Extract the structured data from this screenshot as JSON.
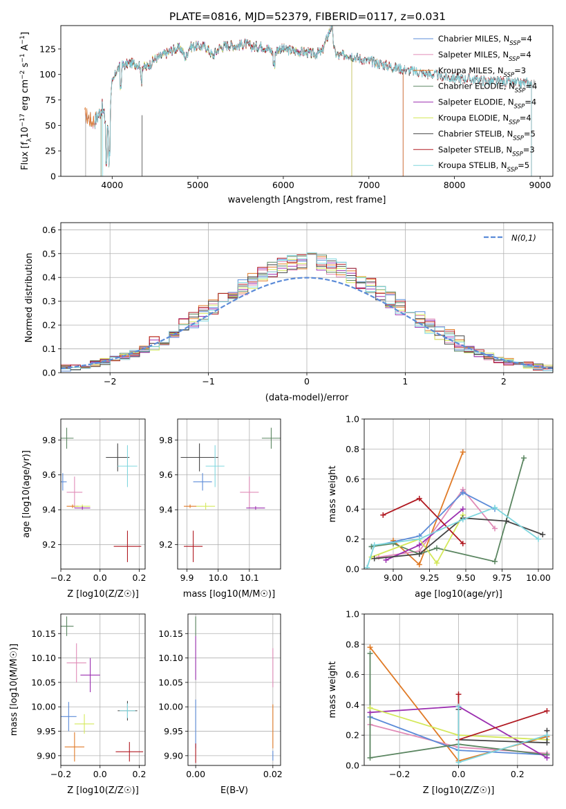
{
  "title": "PLATE=0816, MJD=52379, FIBERID=0117, z=0.031",
  "colors": {
    "blue": "#5b8bd8",
    "pink": "#e08bb7",
    "orange": "#e07a26",
    "green": "#5a8560",
    "purple": "#9b2fb0",
    "yellow": "#d4e85a",
    "gray": "#444444",
    "red": "#b01820",
    "cyan": "#7fd6de"
  },
  "spectrum_panel": {
    "xlabel": "wavelength [Angstrom, rest frame]",
    "ylabel": "Flux [f_λ10^-17 erg cm^-2 s^-1 A^-1]",
    "legend": [
      "Chabrier MILES, N_SSP=4",
      "Salpeter MILES, N_SSP=4",
      "Kroupa MILES, N_SSP=3",
      "Chabrier ELODIE, N_SSP=4",
      "Salpeter ELODIE, N_SSP=4",
      "Kroupa ELODIE, N_SSP=4",
      "Chabrier STELIB, N_SSP=5",
      "Salpeter STELIB, N_SSP=3",
      "Kroupa STELIB, N_SSP=5"
    ]
  },
  "residual_panel": {
    "xlabel": "(data-model)/error",
    "ylabel": "Normed distribution",
    "legend": "N(0,1)"
  },
  "age_z_panel": {
    "xlabel": "Z [log10(Z/Z☉)]",
    "ylabel": "age  [log10(age/yr)]"
  },
  "age_mass_panel": {
    "xlabel": "mass [log10(M/M☉)]"
  },
  "weight_age_panel": {
    "xlabel": "age  [log10(age/yr)]",
    "ylabel": "mass weight"
  },
  "mass_z_panel": {
    "xlabel": "Z [log10(Z/Z☉)]",
    "ylabel": "mass [log10(M/M☉)]"
  },
  "mass_ebv_panel": {
    "xlabel": "E(B-V)"
  },
  "weight_z_panel": {
    "xlabel": "Z [log10(Z/Z☉)]",
    "ylabel": "mass weight"
  },
  "chart_data": [
    {
      "type": "line",
      "title": "PLATE=0816, MJD=52379, FIBERID=0117, z=0.031",
      "xlabel": "wavelength [Angstrom, rest frame]",
      "ylabel": "Flux [f_λ10^-17 erg cm^-2 s^-1 A^-1]",
      "xlim": [
        3400,
        9150
      ],
      "ylim": [
        0,
        148
      ],
      "xticks": [
        4000,
        5000,
        6000,
        7000,
        8000,
        9000
      ],
      "yticks": [
        0,
        25,
        50,
        75,
        100,
        125
      ],
      "legend_position": "top-right",
      "observed": {
        "x": [
          3680,
          3720,
          3760,
          3800,
          3850,
          3880,
          3920,
          3960,
          4000,
          4050,
          4100,
          4200,
          4300,
          4400,
          4500,
          4600,
          4700,
          4800,
          4861,
          4900,
          5000,
          5100,
          5175,
          5250,
          5350,
          5450,
          5550,
          5650,
          5750,
          5850,
          5893,
          5950,
          6050,
          6150,
          6250,
          6350,
          6450,
          6563,
          6600,
          6650,
          6750,
          6850,
          6950,
          7050,
          7150,
          7250,
          7350,
          7450,
          7550,
          7650,
          7750,
          7850,
          7950,
          8050,
          8150,
          8250,
          8350,
          8450,
          8550,
          8650,
          8750,
          8850,
          8950
        ],
        "y": [
          60,
          58,
          54,
          55,
          62,
          68,
          55,
          48,
          90,
          104,
          108,
          111,
          110,
          107,
          115,
          119,
          124,
          126,
          116,
          127,
          128,
          127,
          118,
          126,
          129,
          128,
          130,
          127,
          128,
          124,
          120,
          126,
          124,
          123,
          122,
          120,
          122,
          148,
          122,
          118,
          120,
          117,
          114,
          112,
          110,
          108,
          106,
          104,
          103,
          101,
          100,
          98,
          97,
          96,
          96,
          95,
          94,
          93,
          93,
          92,
          91,
          92,
          90
        ]
      },
      "series": [
        {
          "name": "Chabrier MILES, N_SSP=4",
          "color": "blue"
        },
        {
          "name": "Salpeter MILES, N_SSP=4",
          "color": "pink"
        },
        {
          "name": "Kroupa MILES, N_SSP=3",
          "color": "orange"
        },
        {
          "name": "Chabrier ELODIE, N_SSP=4",
          "color": "green"
        },
        {
          "name": "Salpeter ELODIE, N_SSP=4",
          "color": "purple"
        },
        {
          "name": "Kroupa ELODIE, N_SSP=4",
          "color": "yellow"
        },
        {
          "name": "Chabrier STELIB, N_SSP=5",
          "color": "gray"
        },
        {
          "name": "Salpeter STELIB, N_SSP=3",
          "color": "red"
        },
        {
          "name": "Kroupa STELIB, N_SSP=5",
          "color": "cyan"
        }
      ],
      "model_ranges": {
        "MILES": [
          3540,
          7400
        ],
        "ELODIE": [
          3900,
          6800
        ],
        "STELIB": [
          3800,
          8900
        ]
      }
    },
    {
      "type": "bar",
      "xlabel": "(data-model)/error",
      "ylabel": "Normed distribution",
      "xlim": [
        -2.5,
        2.5
      ],
      "ylim": [
        0,
        0.63
      ],
      "xticks": [
        -2,
        -1,
        0,
        1,
        2
      ],
      "yticks": [
        0.0,
        0.1,
        0.2,
        0.3,
        0.4,
        0.5,
        0.6
      ],
      "grid": true,
      "histogram_bin_width": 0.1,
      "histogram_bin_range": [
        -2.5,
        2.5
      ],
      "reference_curve": {
        "name": "N(0,1)",
        "mean": 0,
        "sigma": 1,
        "style": "dashed",
        "color": "blue"
      },
      "series_colors": [
        "blue",
        "pink",
        "orange",
        "green",
        "purple",
        "yellow",
        "gray",
        "red",
        "cyan"
      ]
    },
    {
      "type": "scatter",
      "xlabel": "Z [log10(Z/Z☉)]",
      "ylabel": "age  [log10(age/yr)]",
      "xlim": [
        -0.2,
        0.23
      ],
      "ylim": [
        9.06,
        9.92
      ],
      "xticks": [
        -0.2,
        0.0,
        0.2
      ],
      "yticks": [
        9.2,
        9.4,
        9.6,
        9.8
      ],
      "points": [
        {
          "color": "green",
          "x": -0.17,
          "xerr": 0.035,
          "y": 9.81,
          "yerr": 0.06
        },
        {
          "color": "blue",
          "x": -0.19,
          "xerr": 0.02,
          "y": 9.56,
          "yerr": 0.05
        },
        {
          "color": "pink",
          "x": -0.13,
          "xerr": 0.04,
          "y": 9.5,
          "yerr": 0.09
        },
        {
          "color": "orange",
          "x": -0.14,
          "xerr": 0.03,
          "y": 9.42,
          "yerr": 0.01
        },
        {
          "color": "yellow",
          "x": -0.09,
          "xerr": 0.04,
          "y": 9.42,
          "yerr": 0.01
        },
        {
          "color": "purple",
          "x": -0.09,
          "xerr": 0.04,
          "y": 9.41,
          "yerr": 0.01
        },
        {
          "color": "gray",
          "x": 0.09,
          "xerr": 0.06,
          "y": 9.7,
          "yerr": 0.08
        },
        {
          "color": "cyan",
          "x": 0.14,
          "xerr": 0.05,
          "y": 9.65,
          "yerr": 0.12
        },
        {
          "color": "red",
          "x": 0.14,
          "xerr": 0.07,
          "y": 9.19,
          "yerr": 0.09
        }
      ]
    },
    {
      "type": "scatter",
      "xlabel": "mass [log10(M/M☉)]",
      "xlim": [
        9.87,
        10.2
      ],
      "ylim": [
        9.06,
        9.92
      ],
      "xticks": [
        9.9,
        10.0,
        10.1
      ],
      "yticks": [
        9.2,
        9.4,
        9.6,
        9.8
      ],
      "points": [
        {
          "color": "green",
          "x": 10.17,
          "xerr": 0.03,
          "y": 9.81,
          "yerr": 0.06
        },
        {
          "color": "gray",
          "x": 9.94,
          "xerr": 0.06,
          "y": 9.7,
          "yerr": 0.08
        },
        {
          "color": "cyan",
          "x": 9.99,
          "xerr": 0.03,
          "y": 9.65,
          "yerr": 0.12
        },
        {
          "color": "blue",
          "x": 9.95,
          "xerr": 0.03,
          "y": 9.56,
          "yerr": 0.05
        },
        {
          "color": "pink",
          "x": 10.1,
          "xerr": 0.03,
          "y": 9.5,
          "yerr": 0.09
        },
        {
          "color": "yellow",
          "x": 9.96,
          "xerr": 0.03,
          "y": 9.42,
          "yerr": 0.02
        },
        {
          "color": "orange",
          "x": 9.91,
          "xerr": 0.02,
          "y": 9.42,
          "yerr": 0.01
        },
        {
          "color": "purple",
          "x": 10.12,
          "xerr": 0.03,
          "y": 9.41,
          "yerr": 0.01
        },
        {
          "color": "red",
          "x": 9.92,
          "xerr": 0.03,
          "y": 9.19,
          "yerr": 0.09
        }
      ]
    },
    {
      "type": "line",
      "xlabel": "age  [log10(age/yr)]",
      "ylabel": "mass weight",
      "xlim": [
        8.8,
        10.1
      ],
      "ylim": [
        0,
        1
      ],
      "xticks": [
        9.0,
        9.25,
        9.5,
        9.75,
        10.0
      ],
      "yticks": [
        0.0,
        0.2,
        0.4,
        0.6,
        0.8,
        1.0
      ],
      "grid": true,
      "series": [
        {
          "color": "orange",
          "x": [
            9.0,
            9.18,
            9.48
          ],
          "y": [
            0.19,
            0.03,
            0.78
          ]
        },
        {
          "color": "pink",
          "x": [
            8.9,
            9.18,
            9.48,
            9.7
          ],
          "y": [
            0.08,
            0.12,
            0.53,
            0.27
          ]
        },
        {
          "color": "blue",
          "x": [
            8.85,
            9.18,
            9.48,
            9.7
          ],
          "y": [
            0.15,
            0.22,
            0.51,
            0.4
          ]
        },
        {
          "color": "green",
          "x": [
            8.85,
            9.0,
            9.18,
            9.3,
            9.7,
            9.9
          ],
          "y": [
            0.15,
            0.17,
            0.1,
            0.14,
            0.05,
            0.74
          ]
        },
        {
          "color": "purple",
          "x": [
            8.95,
            9.18,
            9.48
          ],
          "y": [
            0.06,
            0.16,
            0.4
          ]
        },
        {
          "color": "yellow",
          "x": [
            8.85,
            9.18,
            9.3,
            9.48
          ],
          "y": [
            0.08,
            0.2,
            0.04,
            0.36
          ]
        },
        {
          "color": "gray",
          "x": [
            8.87,
            9.18,
            9.48,
            9.78,
            10.03
          ],
          "y": [
            0.07,
            0.1,
            0.34,
            0.32,
            0.23
          ]
        },
        {
          "color": "red",
          "x": [
            8.93,
            9.18,
            9.48
          ],
          "y": [
            0.36,
            0.47,
            0.17
          ]
        },
        {
          "color": "cyan",
          "x": [
            8.82,
            8.87,
            9.18,
            9.48,
            9.7,
            10.0
          ],
          "y": [
            0.01,
            0.16,
            0.2,
            0.33,
            0.41,
            0.2
          ]
        }
      ]
    },
    {
      "type": "scatter",
      "xlabel": "Z [log10(Z/Z☉)]",
      "ylabel": "mass [log10(M/M☉)]",
      "xlim": [
        -0.2,
        0.23
      ],
      "ylim": [
        9.88,
        10.19
      ],
      "xticks": [
        -0.2,
        0.0,
        0.2
      ],
      "yticks": [
        9.9,
        9.95,
        10.0,
        10.05,
        10.1,
        10.15
      ],
      "points": [
        {
          "color": "green",
          "x": -0.17,
          "xerr": 0.035,
          "y": 10.165,
          "yerr": 0.02
        },
        {
          "color": "purple",
          "x": -0.05,
          "xerr": 0.05,
          "y": 10.065,
          "yerr": 0.035
        },
        {
          "color": "pink",
          "x": -0.12,
          "xerr": 0.05,
          "y": 10.09,
          "yerr": 0.04
        },
        {
          "color": "blue",
          "x": -0.16,
          "xerr": 0.04,
          "y": 9.98,
          "yerr": 0.03
        },
        {
          "color": "yellow",
          "x": -0.08,
          "xerr": 0.05,
          "y": 9.965,
          "yerr": 0.02
        },
        {
          "color": "orange",
          "x": -0.13,
          "xerr": 0.05,
          "y": 9.918,
          "yerr": 0.03
        },
        {
          "color": "gray",
          "x": 0.14,
          "xerr": 0.05,
          "y": 9.992,
          "yerr": 0.02
        },
        {
          "color": "cyan",
          "x": 0.14,
          "xerr": 0.04,
          "y": 9.992,
          "yerr": 0.015
        },
        {
          "color": "red",
          "x": 0.15,
          "xerr": 0.07,
          "y": 9.908,
          "yerr": 0.02
        }
      ]
    },
    {
      "type": "scatter",
      "xlabel": "E(B-V)",
      "xlim": [
        -0.002,
        0.022
      ],
      "ylim": [
        9.88,
        10.19
      ],
      "xticks": [
        0.0,
        0.02
      ],
      "yticks": [
        9.9,
        9.95,
        10.0,
        10.05,
        10.1,
        10.15
      ],
      "points": [
        {
          "color": "green",
          "x": 0.0,
          "y": 10.165,
          "yerr": 0.02
        },
        {
          "color": "purple",
          "x": 0.0,
          "y": 10.1,
          "yerr": 0.045
        },
        {
          "color": "blue",
          "x": 0.0,
          "y": 9.965,
          "yerr": 0.05
        },
        {
          "color": "red",
          "x": 0.0,
          "y": 9.905,
          "yerr": 0.02
        },
        {
          "color": "pink",
          "x": 0.02,
          "y": 10.08,
          "yerr": 0.04
        },
        {
          "color": "orange",
          "x": 0.02,
          "y": 9.96,
          "yerr": 0.045
        },
        {
          "color": "blue",
          "x": 0.02,
          "y": 9.9,
          "yerr": 0.01
        }
      ]
    },
    {
      "type": "line",
      "xlabel": "Z [log10(Z/Z☉)]",
      "ylabel": "mass weight",
      "xlim": [
        -0.32,
        0.32
      ],
      "ylim": [
        0,
        1
      ],
      "xticks": [
        -0.2,
        0.0,
        0.2
      ],
      "yticks": [
        0.0,
        0.2,
        0.4,
        0.6,
        0.8,
        1.0
      ],
      "grid": true,
      "series": [
        {
          "color": "orange",
          "x": [
            -0.3,
            0.0,
            0.3
          ],
          "y": [
            0.78,
            0.03,
            0.19
          ]
        },
        {
          "color": "pink",
          "x": [
            -0.3,
            0.0,
            0.3
          ],
          "y": [
            0.27,
            0.12,
            0.08
          ]
        },
        {
          "color": "blue",
          "x": [
            -0.3,
            0.0,
            0.3
          ],
          "y": [
            0.32,
            0.1,
            0.07
          ]
        },
        {
          "color": "green",
          "x": [
            -0.3,
            -0.3,
            0.0,
            0.3
          ],
          "y": [
            0.74,
            0.05,
            0.14,
            0.07
          ]
        },
        {
          "color": "purple",
          "x": [
            -0.3,
            0.0,
            0.3
          ],
          "y": [
            0.35,
            0.39,
            0.05
          ]
        },
        {
          "color": "yellow",
          "x": [
            -0.3,
            0.0,
            0.3
          ],
          "y": [
            0.38,
            0.2,
            0.17
          ]
        },
        {
          "color": "gray",
          "x": [
            0.0,
            0.0,
            0.3,
            0.3
          ],
          "y": [
            0.37,
            0.17,
            0.15,
            0.23
          ]
        },
        {
          "color": "red",
          "x": [
            0.0,
            0.0,
            0.3
          ],
          "y": [
            0.47,
            0.17,
            0.36
          ]
        },
        {
          "color": "cyan",
          "x": [
            0.0,
            0.0,
            0.3
          ],
          "y": [
            0.39,
            0.02,
            0.2
          ]
        }
      ]
    }
  ]
}
